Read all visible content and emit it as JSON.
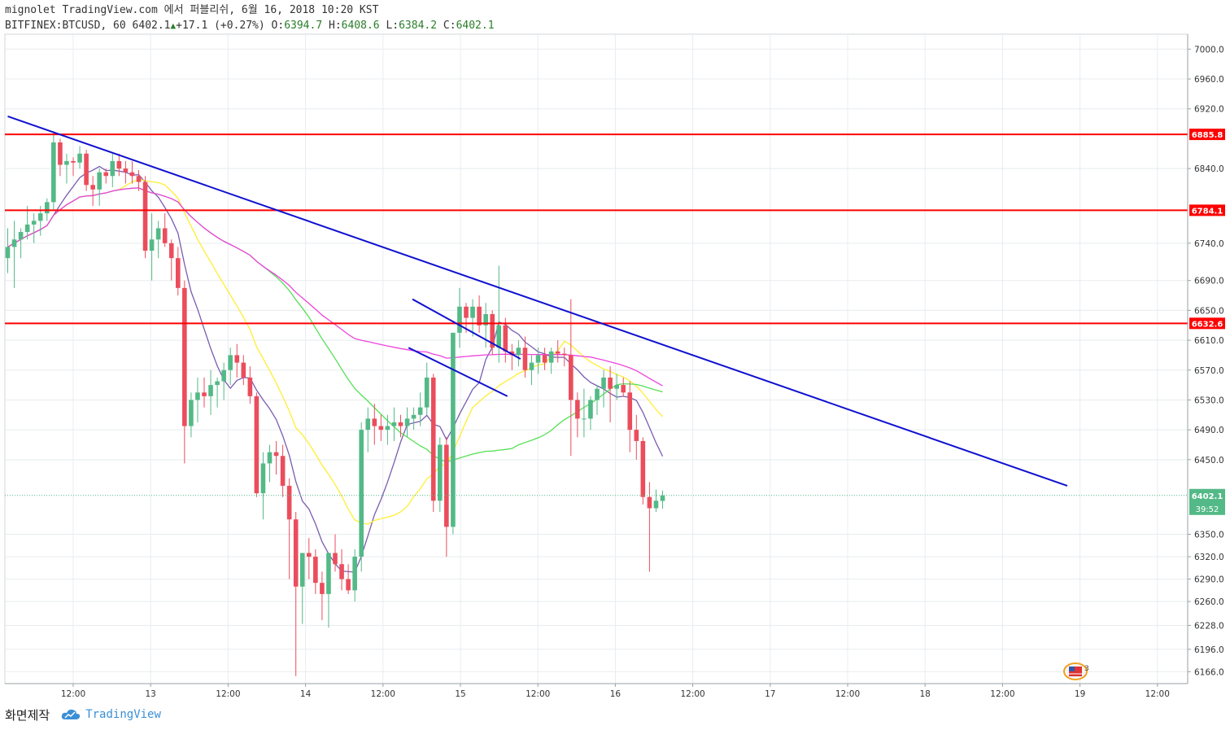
{
  "header": {
    "line1": "mignolet TradingView.com 에서 퍼블리쉬, 6월 16, 2018 10:20 KST",
    "symbol": "BITFINEX:BTCUSD, 60",
    "last": "6402.1",
    "change": "+17.1 (+0.27%)",
    "o_label": "O:",
    "o": "6394.7",
    "h_label": "H:",
    "h": "6408.6",
    "l_label": "L:",
    "l": "6384.2",
    "c_label": "C:",
    "c": "6402.1"
  },
  "footer": {
    "credit": "화면제작",
    "brand": "TradingView"
  },
  "colors": {
    "bull": "#53b987",
    "bear": "#eb4d5c",
    "hline": "#ff0000",
    "trend": "#1010d0",
    "ma_purple": "#7a5cb0",
    "ma_yellow": "#ffee33",
    "ma_green": "#55e055",
    "ma_magenta": "#ee44dd",
    "grid": "#e8ecef"
  },
  "chart_data": {
    "type": "candlestick",
    "price_axis": {
      "ticks": [
        7000.0,
        6960.0,
        6920.0,
        6840.0,
        6740.0,
        6690.0,
        6650.0,
        6610.0,
        6570.0,
        6530.0,
        6490.0,
        6450.0,
        6350.0,
        6320.0,
        6290.0,
        6260.0,
        6228.0,
        6196.0,
        6166.0
      ],
      "range": [
        6150,
        7020
      ]
    },
    "time_axis": [
      "12:00",
      "13",
      "12:00",
      "14",
      "12:00",
      "15",
      "12:00",
      "16",
      "12:00",
      "17",
      "12:00",
      "18",
      "12:00",
      "19",
      "12:00"
    ],
    "horizontal_levels": [
      "6885.8",
      "6784.1",
      "6632.6"
    ],
    "last_price": {
      "value": "6402.1",
      "countdown": "39:52"
    },
    "trendlines": [
      {
        "from": [
          0,
          6910
        ],
        "to": [
          161.8,
          6415
        ]
      },
      {
        "from": [
          61.8,
          6665
        ],
        "to": [
          78.3,
          6585
        ]
      },
      {
        "from": [
          61.2,
          6600
        ],
        "to": [
          76.3,
          6535
        ]
      }
    ],
    "candles": [
      [
        6720,
        6760,
        6700,
        6735
      ],
      [
        6735,
        6770,
        6680,
        6745
      ],
      [
        6745,
        6760,
        6720,
        6755
      ],
      [
        6755,
        6790,
        6745,
        6765
      ],
      [
        6765,
        6780,
        6740,
        6770
      ],
      [
        6770,
        6790,
        6750,
        6780
      ],
      [
        6780,
        6800,
        6770,
        6795
      ],
      [
        6795,
        6890,
        6785,
        6875
      ],
      [
        6875,
        6880,
        6830,
        6845
      ],
      [
        6845,
        6860,
        6820,
        6850
      ],
      [
        6850,
        6855,
        6830,
        6848
      ],
      [
        6848,
        6870,
        6840,
        6860
      ],
      [
        6860,
        6865,
        6810,
        6818
      ],
      [
        6818,
        6830,
        6790,
        6812
      ],
      [
        6812,
        6840,
        6790,
        6835
      ],
      [
        6835,
        6840,
        6820,
        6830
      ],
      [
        6830,
        6860,
        6815,
        6850
      ],
      [
        6850,
        6860,
        6830,
        6840
      ],
      [
        6840,
        6850,
        6820,
        6835
      ],
      [
        6835,
        6850,
        6820,
        6830
      ],
      [
        6830,
        6838,
        6810,
        6822
      ],
      [
        6822,
        6830,
        6720,
        6730
      ],
      [
        6730,
        6780,
        6690,
        6745
      ],
      [
        6745,
        6770,
        6720,
        6760
      ],
      [
        6760,
        6780,
        6735,
        6740
      ],
      [
        6740,
        6745,
        6690,
        6720
      ],
      [
        6720,
        6735,
        6670,
        6680
      ],
      [
        6680,
        6690,
        6445,
        6495
      ],
      [
        6495,
        6540,
        6480,
        6530
      ],
      [
        6530,
        6560,
        6500,
        6540
      ],
      [
        6540,
        6560,
        6520,
        6535
      ],
      [
        6535,
        6570,
        6510,
        6550
      ],
      [
        6550,
        6560,
        6520,
        6555
      ],
      [
        6555,
        6580,
        6530,
        6570
      ],
      [
        6570,
        6600,
        6550,
        6590
      ],
      [
        6590,
        6605,
        6560,
        6580
      ],
      [
        6580,
        6590,
        6550,
        6560
      ],
      [
        6560,
        6575,
        6525,
        6535
      ],
      [
        6535,
        6540,
        6400,
        6405
      ],
      [
        6405,
        6460,
        6370,
        6445
      ],
      [
        6445,
        6470,
        6420,
        6460
      ],
      [
        6460,
        6475,
        6430,
        6455
      ],
      [
        6455,
        6470,
        6400,
        6415
      ],
      [
        6415,
        6425,
        6290,
        6370
      ],
      [
        6370,
        6380,
        6160,
        6280
      ],
      [
        6280,
        6320,
        6230,
        6325
      ],
      [
        6325,
        6345,
        6290,
        6320
      ],
      [
        6320,
        6330,
        6270,
        6285
      ],
      [
        6285,
        6300,
        6235,
        6270
      ],
      [
        6270,
        6320,
        6225,
        6325
      ],
      [
        6325,
        6350,
        6300,
        6310
      ],
      [
        6310,
        6330,
        6275,
        6290
      ],
      [
        6290,
        6310,
        6270,
        6275
      ],
      [
        6275,
        6330,
        6260,
        6320
      ],
      [
        6320,
        6500,
        6300,
        6490
      ],
      [
        6490,
        6520,
        6460,
        6505
      ],
      [
        6505,
        6525,
        6470,
        6495
      ],
      [
        6495,
        6510,
        6475,
        6490
      ],
      [
        6490,
        6510,
        6470,
        6495
      ],
      [
        6495,
        6520,
        6475,
        6500
      ],
      [
        6500,
        6510,
        6480,
        6495
      ],
      [
        6495,
        6520,
        6480,
        6505
      ],
      [
        6505,
        6520,
        6490,
        6510
      ],
      [
        6510,
        6540,
        6495,
        6520
      ],
      [
        6520,
        6580,
        6510,
        6560
      ],
      [
        6560,
        6565,
        6380,
        6395
      ],
      [
        6395,
        6480,
        6380,
        6470
      ],
      [
        6470,
        6480,
        6320,
        6360
      ],
      [
        6360,
        6620,
        6350,
        6620
      ],
      [
        6620,
        6680,
        6600,
        6655
      ],
      [
        6655,
        6660,
        6620,
        6640
      ],
      [
        6640,
        6665,
        6615,
        6655
      ],
      [
        6655,
        6670,
        6620,
        6630
      ],
      [
        6630,
        6660,
        6600,
        6645
      ],
      [
        6645,
        6650,
        6590,
        6600
      ],
      [
        6600,
        6710,
        6580,
        6630
      ],
      [
        6630,
        6640,
        6580,
        6595
      ],
      [
        6595,
        6605,
        6570,
        6590
      ],
      [
        6590,
        6610,
        6575,
        6600
      ],
      [
        6600,
        6615,
        6560,
        6570
      ],
      [
        6570,
        6590,
        6550,
        6580
      ],
      [
        6580,
        6600,
        6565,
        6590
      ],
      [
        6590,
        6600,
        6570,
        6580
      ],
      [
        6580,
        6600,
        6565,
        6595
      ],
      [
        6595,
        6610,
        6580,
        6592
      ],
      [
        6592,
        6600,
        6575,
        6590
      ],
      [
        6590,
        6665,
        6455,
        6530
      ],
      [
        6530,
        6540,
        6480,
        6505
      ],
      [
        6505,
        6545,
        6480,
        6505
      ],
      [
        6505,
        6535,
        6490,
        6530
      ],
      [
        6530,
        6550,
        6510,
        6545
      ],
      [
        6545,
        6570,
        6520,
        6560
      ],
      [
        6560,
        6575,
        6500,
        6545
      ],
      [
        6545,
        6565,
        6530,
        6550
      ],
      [
        6550,
        6560,
        6535,
        6540
      ],
      [
        6540,
        6555,
        6460,
        6490
      ],
      [
        6490,
        6510,
        6450,
        6475
      ],
      [
        6475,
        6480,
        6390,
        6400
      ],
      [
        6400,
        6420,
        6300,
        6385
      ],
      [
        6385,
        6410,
        6380,
        6395
      ],
      [
        6394.7,
        6408.6,
        6384.2,
        6402.1
      ]
    ]
  }
}
